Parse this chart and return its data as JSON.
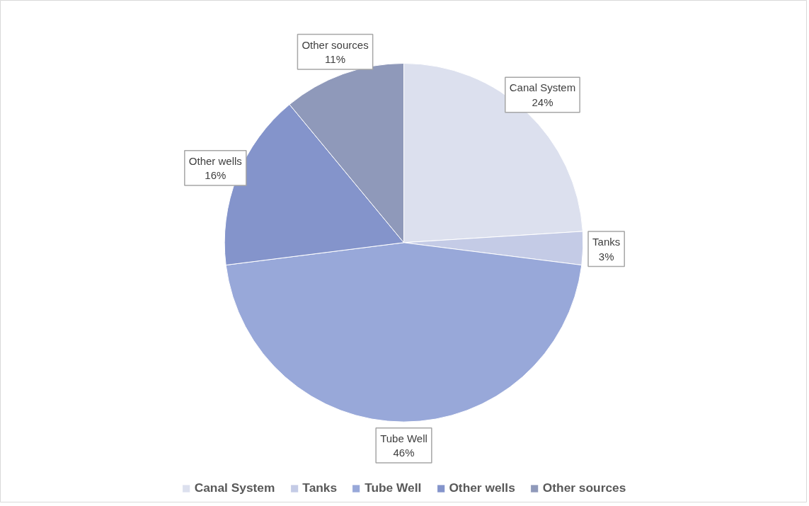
{
  "chart_data": {
    "type": "pie",
    "categories": [
      "Canal System",
      "Tanks",
      "Tube Well",
      "Other wells",
      "Other sources"
    ],
    "values": [
      24,
      3,
      46,
      16,
      11
    ],
    "colors": [
      "#dce0ee",
      "#c4cbe6",
      "#98a8d9",
      "#8494cb",
      "#8f99ba"
    ],
    "value_labels": [
      "24%",
      "3%",
      "46%",
      "16%",
      "11%"
    ],
    "data_labels": true,
    "legend": "bottom"
  }
}
